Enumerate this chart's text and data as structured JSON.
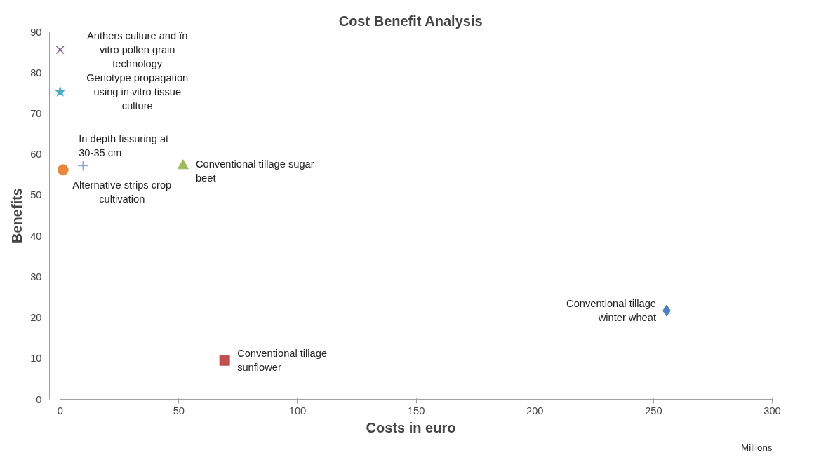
{
  "chart_data": {
    "type": "scatter",
    "title": "Cost Benefit Analysis",
    "xlabel": "Costs in euro",
    "ylabel": "Benefits",
    "annotations": [
      "Millions"
    ],
    "xlim": [
      0,
      300
    ],
    "xticks": [
      0,
      50,
      100,
      150,
      200,
      250,
      300
    ],
    "ylim": [
      0,
      90
    ],
    "yticks": [
      0,
      10,
      20,
      30,
      40,
      50,
      60,
      70,
      80,
      90
    ],
    "grid": false,
    "series": [
      {
        "name": "Conventional tillage winter wheat",
        "color": "#4f81bd",
        "marker": "diamond",
        "x": [
          255.5
        ],
        "values": [
          21.7
        ]
      },
      {
        "name": "Conventional tillage sunflower",
        "color": "#c0504d",
        "marker": "square",
        "x": [
          69.3
        ],
        "values": [
          9.5
        ]
      },
      {
        "name": "Conventional tillage sugar beet",
        "color": "#9bbb59",
        "marker": "triangle",
        "x": [
          51.8
        ],
        "values": [
          57.2
        ]
      },
      {
        "name": "In depth fissuring at 30-35 cm",
        "color": "#8ea8d8",
        "marker": "cross",
        "x": [
          9.6
        ],
        "values": [
          57.2
        ]
      },
      {
        "name": "Alternative strips crop cultivation",
        "color": "#e8883a",
        "marker": "circle",
        "x": [
          1.2
        ],
        "values": [
          56.2
        ]
      },
      {
        "name": "Genotype propagation using in vitro tissue culture",
        "color": "#4bacc6",
        "marker": "star",
        "x": [
          0
        ],
        "values": [
          75.3
        ]
      },
      {
        "name": "Anthers culture and ïn vitro pollen grain technology",
        "color": "#8064a2",
        "marker": "x",
        "x": [
          0
        ],
        "values": [
          85.6
        ]
      }
    ]
  }
}
